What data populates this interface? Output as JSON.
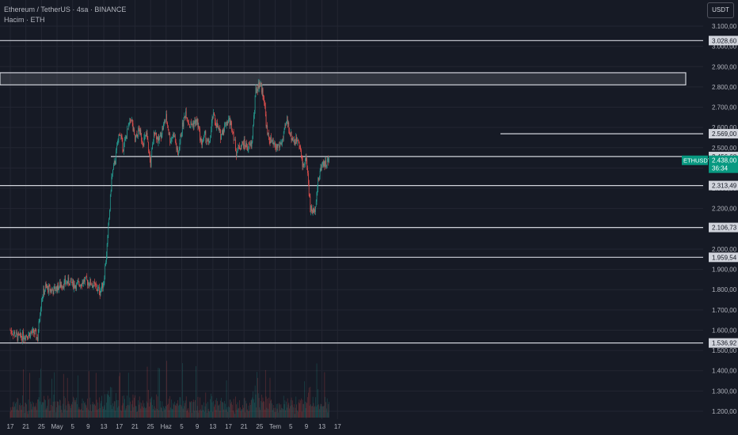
{
  "header": {
    "symbol_line": "Ethereum / TetherUS · 4sa · BINANCE",
    "volume_line": "Hacim · ETH"
  },
  "currency_button": "USDT",
  "colors": {
    "background": "#161a25",
    "up": "#26a69a",
    "down": "#ef5350",
    "level_line": "#d1d4dc",
    "price_tag": "#089981"
  },
  "chart_data": {
    "type": "candlestick",
    "symbol": "ETHUSDT",
    "x_ticks": [
      "17",
      "21",
      "25",
      "May",
      "5",
      "9",
      "13",
      "17",
      "21",
      "25",
      "Haz",
      "5",
      "9",
      "13",
      "17",
      "21",
      "25",
      "Tem",
      "5",
      "9",
      "13",
      "17"
    ],
    "y_ticks": [
      "3.100,00",
      "3.000,00",
      "2.900,00",
      "2.800,00",
      "2.700,00",
      "2.600,00",
      "2.500,00",
      "2.400,00",
      "2.300,00",
      "2.200,00",
      "2.100,00",
      "2.000,00",
      "1.900,00",
      "1.800,00",
      "1.700,00",
      "1.600,00",
      "1.500,00",
      "1.400,00",
      "1.300,00",
      "1.200,00"
    ],
    "ylim": [
      1200,
      3100
    ],
    "levels": [
      {
        "value": 3028.6,
        "label": "3.028,60"
      },
      {
        "value": 2569.0,
        "label": "2.569,00"
      },
      {
        "value": 2456.68,
        "label": "2.456,68"
      },
      {
        "value": 2313.49,
        "label": "2.313,49"
      },
      {
        "value": 2106.73,
        "label": "2.106,73"
      },
      {
        "value": 1959.54,
        "label": "1.959,54"
      },
      {
        "value": 1536.92,
        "label": "1.536,92"
      }
    ],
    "zone": {
      "low": 2810,
      "high": 2870
    },
    "current_price": {
      "value": 2438.0,
      "label": "2.438,00",
      "symbol": "ETHUSDT",
      "countdown": "36:34"
    },
    "path": [
      {
        "day": 0,
        "price": 1600
      },
      {
        "day": 2,
        "price": 1565
      },
      {
        "day": 4,
        "price": 1575
      },
      {
        "day": 6,
        "price": 1590
      },
      {
        "day": 7,
        "price": 1560
      },
      {
        "day": 8,
        "price": 1760
      },
      {
        "day": 9,
        "price": 1810
      },
      {
        "day": 11,
        "price": 1795
      },
      {
        "day": 13,
        "price": 1825
      },
      {
        "day": 15,
        "price": 1840
      },
      {
        "day": 17,
        "price": 1820
      },
      {
        "day": 19,
        "price": 1845
      },
      {
        "day": 21,
        "price": 1830
      },
      {
        "day": 23,
        "price": 1790
      },
      {
        "day": 24,
        "price": 1840
      },
      {
        "day": 25,
        "price": 2050
      },
      {
        "day": 26,
        "price": 2350
      },
      {
        "day": 27,
        "price": 2450
      },
      {
        "day": 28,
        "price": 2580
      },
      {
        "day": 29,
        "price": 2500
      },
      {
        "day": 31,
        "price": 2650
      },
      {
        "day": 32,
        "price": 2530
      },
      {
        "day": 33,
        "price": 2590
      },
      {
        "day": 34,
        "price": 2530
      },
      {
        "day": 35,
        "price": 2560
      },
      {
        "day": 36,
        "price": 2420
      },
      {
        "day": 37,
        "price": 2590
      },
      {
        "day": 38,
        "price": 2530
      },
      {
        "day": 40,
        "price": 2650
      },
      {
        "day": 41,
        "price": 2540
      },
      {
        "day": 42,
        "price": 2570
      },
      {
        "day": 43,
        "price": 2460
      },
      {
        "day": 44,
        "price": 2590
      },
      {
        "day": 45,
        "price": 2680
      },
      {
        "day": 46,
        "price": 2610
      },
      {
        "day": 48,
        "price": 2630
      },
      {
        "day": 49,
        "price": 2520
      },
      {
        "day": 50,
        "price": 2560
      },
      {
        "day": 51,
        "price": 2510
      },
      {
        "day": 52,
        "price": 2660
      },
      {
        "day": 53,
        "price": 2610
      },
      {
        "day": 54,
        "price": 2560
      },
      {
        "day": 55,
        "price": 2610
      },
      {
        "day": 56,
        "price": 2640
      },
      {
        "day": 57,
        "price": 2600
      },
      {
        "day": 58,
        "price": 2480
      },
      {
        "day": 59,
        "price": 2510
      },
      {
        "day": 60,
        "price": 2520
      },
      {
        "day": 61,
        "price": 2500
      },
      {
        "day": 62,
        "price": 2520
      },
      {
        "day": 63,
        "price": 2780
      },
      {
        "day": 64,
        "price": 2820
      },
      {
        "day": 65,
        "price": 2760
      },
      {
        "day": 66,
        "price": 2560
      },
      {
        "day": 67,
        "price": 2530
      },
      {
        "day": 68,
        "price": 2500
      },
      {
        "day": 69,
        "price": 2510
      },
      {
        "day": 70,
        "price": 2540
      },
      {
        "day": 71,
        "price": 2640
      },
      {
        "day": 72,
        "price": 2560
      },
      {
        "day": 73,
        "price": 2530
      },
      {
        "day": 74,
        "price": 2550
      },
      {
        "day": 75,
        "price": 2410
      },
      {
        "day": 76,
        "price": 2450
      },
      {
        "day": 77,
        "price": 2200
      },
      {
        "day": 78,
        "price": 2180
      },
      {
        "day": 79,
        "price": 2330
      },
      {
        "day": 80,
        "price": 2430
      },
      {
        "day": 81,
        "price": 2420
      },
      {
        "day": 81.8,
        "price": 2438
      }
    ]
  }
}
